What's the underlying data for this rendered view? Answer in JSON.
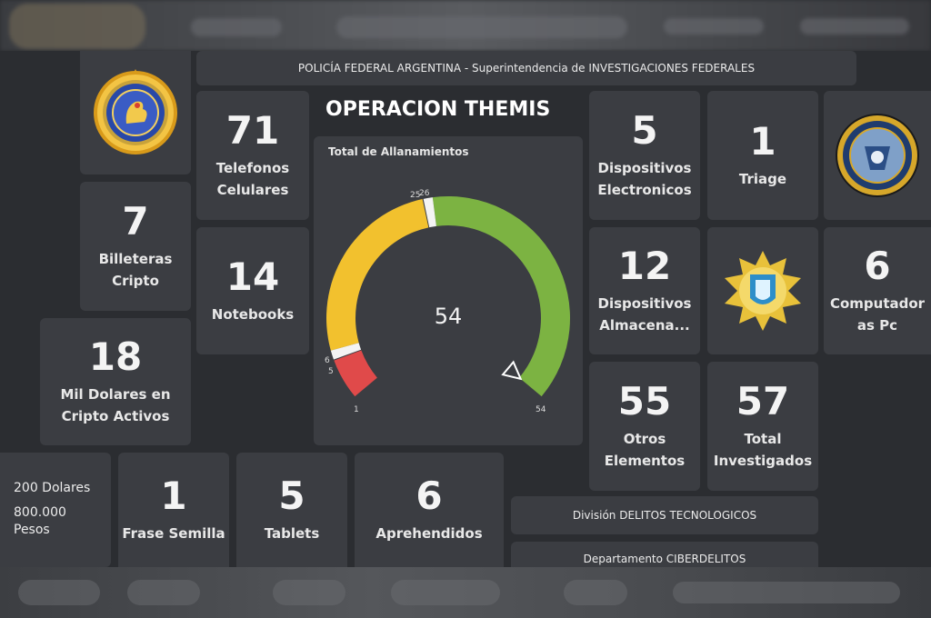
{
  "header": "POLICÍA FEDERAL ARGENTINA - Superintendencia de INVESTIGACIONES FEDERALES",
  "title": "OPERACION THEMIS",
  "gauge": {
    "title": "Total de Allanamientos",
    "value": "54",
    "min": 1,
    "max": 54,
    "bands": [
      {
        "from": 1,
        "to": 5,
        "color": "#e04a4a"
      },
      {
        "from": 6,
        "to": 25,
        "color": "#f2c12e"
      },
      {
        "from": 26,
        "to": 54,
        "color": "#7cb342"
      }
    ],
    "tick_labels": [
      "1",
      "5",
      "6",
      "25",
      "26",
      "54"
    ]
  },
  "tiles": {
    "celulares": {
      "value": "71",
      "label": "Telefonos Celulares"
    },
    "billeteras": {
      "value": "7",
      "label": "Billeteras Cripto"
    },
    "notebooks": {
      "value": "14",
      "label": "Notebooks"
    },
    "cripto": {
      "value": "18",
      "label": "Mil Dolares en Cripto Activos"
    },
    "frase": {
      "value": "1",
      "label": "Frase Semilla"
    },
    "tablets": {
      "value": "5",
      "label": "Tablets"
    },
    "aprehendidos": {
      "value": "6",
      "label": "Aprehendidos"
    },
    "electronicos": {
      "value": "5",
      "label": "Dispositivos Electronicos"
    },
    "triage": {
      "value": "1",
      "label": "Triage"
    },
    "almacenamiento": {
      "value": "12",
      "label": "Dispositivos Almacena..."
    },
    "computadoras": {
      "value": "6",
      "label": "Computador as Pc"
    },
    "otros": {
      "value": "55",
      "label": "Otros Elementos"
    },
    "investigados": {
      "value": "57",
      "label": "Total Investigados"
    }
  },
  "cash": {
    "dolares": "200 Dolares",
    "pesos": "800.000 Pesos"
  },
  "division": "División DELITOS TECNOLOGICOS",
  "departamento": "Departamento CIBERDELITOS",
  "colors": {
    "tile": "#3b3d42",
    "background": "#2b2d31",
    "red": "#e04a4a",
    "yellow": "#f2c12e",
    "green": "#7cb342"
  },
  "icons": [
    "pfa-badge-logo",
    "federal-investigations-seal",
    "cyber-division-badge"
  ]
}
